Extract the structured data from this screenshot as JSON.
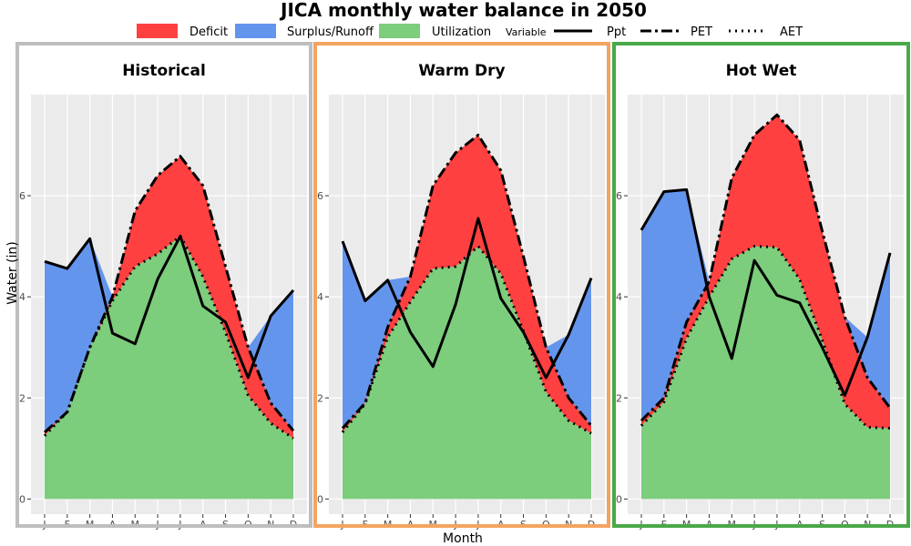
{
  "chart_data": {
    "type": "area",
    "title": "JICA monthly water balance in 2050",
    "xlabel": "Month",
    "ylabel": "Water (in)",
    "x_ticks": [
      "J",
      "F",
      "M",
      "A",
      "M",
      "J",
      "J",
      "A",
      "S",
      "O",
      "N",
      "D"
    ],
    "y_ticks": [
      0,
      2,
      4,
      6
    ],
    "ylim": [
      -0.3,
      8.0
    ],
    "grid": true,
    "legend": {
      "position": "top",
      "fills": [
        {
          "label": "Deficit",
          "color": "#ff4040"
        },
        {
          "label": "Surplus/Runoff",
          "color": "#6495ed"
        },
        {
          "label": "Utilization",
          "color": "#7ccd7c"
        }
      ],
      "variable_title": "Variable",
      "lines": [
        {
          "label": "Ppt",
          "style": "solid"
        },
        {
          "label": "PET",
          "style": "dashdot"
        },
        {
          "label": "AET",
          "style": "dotted"
        }
      ]
    },
    "panels": [
      {
        "name": "Historical",
        "border_color": "#bebebe",
        "series": [
          {
            "name": "Ppt",
            "values": [
              4.7,
              4.56,
              5.15,
              3.28,
              3.07,
              4.35,
              5.2,
              3.82,
              3.5,
              2.4,
              3.62,
              4.13
            ]
          },
          {
            "name": "PET",
            "values": [
              1.32,
              1.72,
              3.0,
              4.0,
              5.7,
              6.4,
              6.78,
              6.2,
              4.6,
              3.0,
              1.9,
              1.35
            ]
          },
          {
            "name": "AET",
            "values": [
              1.25,
              1.72,
              3.0,
              3.92,
              4.6,
              4.85,
              5.2,
              4.4,
              3.3,
              2.05,
              1.5,
              1.2
            ]
          }
        ]
      },
      {
        "name": "Warm Dry",
        "border_color": "#f4a460",
        "series": [
          {
            "name": "Ppt",
            "values": [
              5.1,
              3.92,
              4.33,
              3.3,
              2.62,
              3.85,
              5.55,
              3.97,
              3.3,
              2.4,
              3.25,
              4.37
            ]
          },
          {
            "name": "PET",
            "values": [
              1.4,
              1.9,
              3.4,
              4.4,
              6.2,
              6.85,
              7.2,
              6.5,
              4.8,
              3.0,
              2.0,
              1.45
            ]
          },
          {
            "name": "AET",
            "values": [
              1.32,
              1.88,
              3.2,
              3.9,
              4.56,
              4.6,
              5.0,
              4.46,
              3.32,
              2.12,
              1.55,
              1.3
            ]
          }
        ]
      },
      {
        "name": "Hot Wet",
        "border_color": "#4aa84a",
        "series": [
          {
            "name": "Ppt",
            "values": [
              5.32,
              6.08,
              6.12,
              4.0,
              2.78,
              4.72,
              4.03,
              3.88,
              3.0,
              2.05,
              3.2,
              4.87
            ]
          },
          {
            "name": "PET",
            "values": [
              1.55,
              2.0,
              3.5,
              4.3,
              6.35,
              7.2,
              7.6,
              7.1,
              5.3,
              3.6,
              2.4,
              1.8
            ]
          },
          {
            "name": "AET",
            "values": [
              1.45,
              1.92,
              3.18,
              4.0,
              4.75,
              5.0,
              4.98,
              4.35,
              3.15,
              1.88,
              1.42,
              1.4
            ]
          }
        ]
      }
    ]
  }
}
